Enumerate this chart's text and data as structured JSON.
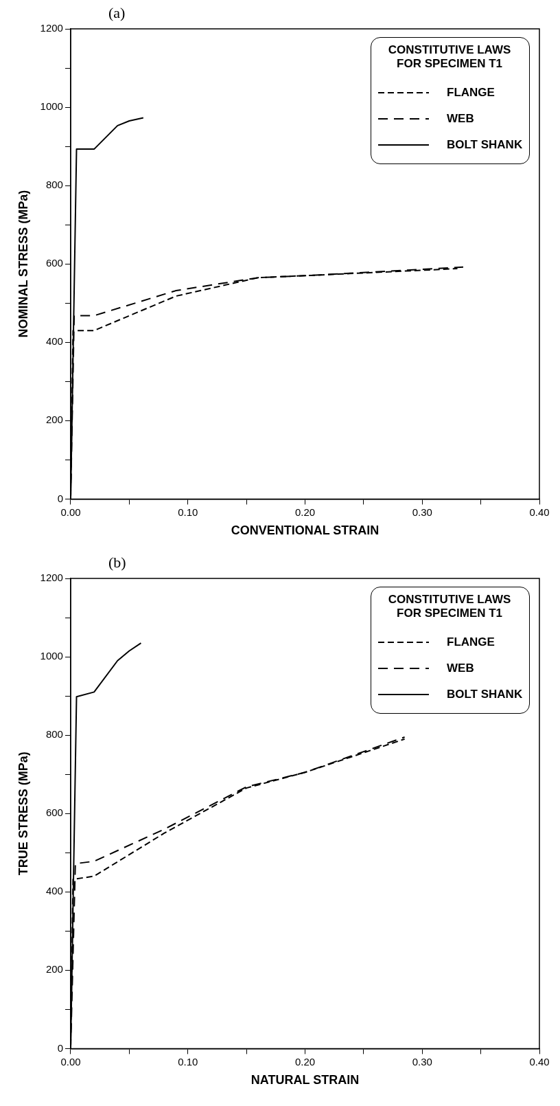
{
  "chart_data": [
    {
      "type": "line",
      "title": "(a)",
      "xlabel": "CONVENTIONAL STRAIN",
      "ylabel": "NOMINAL STRESS (MPa)",
      "legend_title": "CONSTITUTIVE LAWS\nFOR SPECIMEN T1",
      "legend": "top right",
      "grid": false,
      "marker": "none",
      "xlim": [
        0,
        0.4
      ],
      "xticks": [
        {
          "value": 0,
          "label": "0.00"
        },
        {
          "value": 0.05,
          "label": null
        },
        {
          "value": 0.1,
          "label": "0.10"
        },
        {
          "value": 0.15,
          "label": null
        },
        {
          "value": 0.2,
          "label": "0.20"
        },
        {
          "value": 0.25,
          "label": null
        },
        {
          "value": 0.3,
          "label": "0.30"
        },
        {
          "value": 0.35,
          "label": null
        },
        {
          "value": 0.4,
          "label": "0.40"
        }
      ],
      "ylim": [
        0,
        1200
      ],
      "yticks": [
        0,
        {
          "value": 100,
          "label": null
        },
        200,
        {
          "value": 300,
          "label": null
        },
        400,
        {
          "value": 500,
          "label": null
        },
        600,
        {
          "value": 700,
          "label": null
        },
        800,
        {
          "value": 900,
          "label": null
        },
        1000,
        {
          "value": 1100,
          "label": null
        },
        1200
      ],
      "series": [
        {
          "name": "FLANGE",
          "color": "#000000",
          "line_style": "dashed",
          "x": [
            0,
            0.002,
            0.02,
            0.09,
            0.16,
            0.2,
            0.33
          ],
          "values": [
            0,
            430,
            430,
            518,
            565,
            570,
            588
          ]
        },
        {
          "name": "WEB",
          "color": "#000000",
          "line_style": "dashed",
          "x": [
            0,
            0.003,
            0.02,
            0.09,
            0.16,
            0.2,
            0.335
          ],
          "values": [
            0,
            468,
            468,
            532,
            565,
            570,
            592
          ]
        },
        {
          "name": "BOLT SHANK",
          "color": "#000000",
          "line_style": "solid",
          "x": [
            0,
            0.005,
            0.02,
            0.04,
            0.05,
            0.062
          ],
          "values": [
            0,
            893,
            893,
            953,
            965,
            973
          ]
        }
      ]
    },
    {
      "type": "line",
      "title": "(b)",
      "xlabel": "NATURAL STRAIN",
      "ylabel": "TRUE STRESS (MPa)",
      "legend_title": "CONSTITUTIVE LAWS\nFOR SPECIMEN T1",
      "legend": "top right",
      "grid": false,
      "marker": "none",
      "xlim": [
        0,
        0.4
      ],
      "xticks": [
        {
          "value": 0,
          "label": "0.00"
        },
        {
          "value": 0.05,
          "label": null
        },
        {
          "value": 0.1,
          "label": "0.10"
        },
        {
          "value": 0.15,
          "label": null
        },
        {
          "value": 0.2,
          "label": "0.20"
        },
        {
          "value": 0.25,
          "label": null
        },
        {
          "value": 0.3,
          "label": "0.30"
        },
        {
          "value": 0.35,
          "label": null
        },
        {
          "value": 0.4,
          "label": "0.40"
        }
      ],
      "ylim": [
        0,
        1200
      ],
      "yticks": [
        0,
        {
          "value": 100,
          "label": null
        },
        200,
        {
          "value": 300,
          "label": null
        },
        400,
        {
          "value": 500,
          "label": null
        },
        600,
        {
          "value": 700,
          "label": null
        },
        800,
        {
          "value": 900,
          "label": null
        },
        1000,
        {
          "value": 1100,
          "label": null
        },
        1200
      ],
      "series": [
        {
          "name": "FLANGE",
          "color": "#000000",
          "line_style": "dashed",
          "x": [
            0,
            0.002,
            0.02,
            0.08,
            0.15,
            0.2,
            0.285
          ],
          "values": [
            0,
            432,
            440,
            550,
            665,
            705,
            790
          ]
        },
        {
          "name": "WEB",
          "color": "#000000",
          "line_style": "dashed",
          "x": [
            0,
            0.004,
            0.02,
            0.08,
            0.15,
            0.2,
            0.285
          ],
          "values": [
            0,
            472,
            478,
            560,
            668,
            705,
            795
          ]
        },
        {
          "name": "BOLT SHANK",
          "color": "#000000",
          "line_style": "solid",
          "x": [
            0,
            0.005,
            0.02,
            0.04,
            0.05,
            0.06
          ],
          "values": [
            0,
            898,
            910,
            990,
            1015,
            1035
          ]
        }
      ]
    }
  ]
}
